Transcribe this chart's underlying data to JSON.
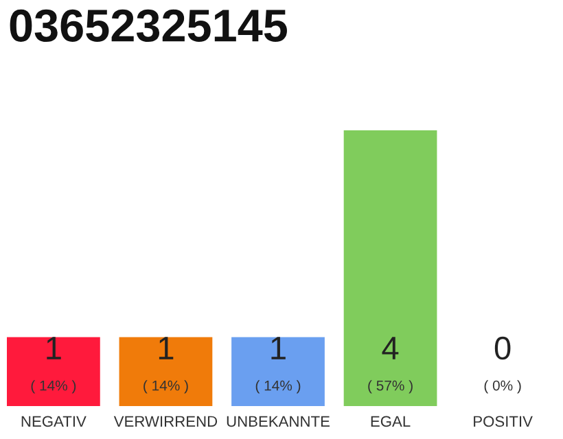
{
  "chart_data": {
    "type": "bar",
    "title": "03652325145",
    "categories": [
      "NEGATIV",
      "VERWIRREND",
      "UNBEKANNTE",
      "EGAL",
      "POSITIV"
    ],
    "values": [
      1,
      1,
      1,
      4,
      0
    ],
    "colors": [
      "#ff1a3c",
      "#f07b0a",
      "#6a9ff0",
      "#80cc5c",
      "#eeeeee"
    ],
    "data_labels": true,
    "annotations": [
      "( 14% )",
      "( 14% )",
      "( 14% )",
      "( 57% )",
      "( 0% )"
    ],
    "grid": false,
    "legend": false
  }
}
